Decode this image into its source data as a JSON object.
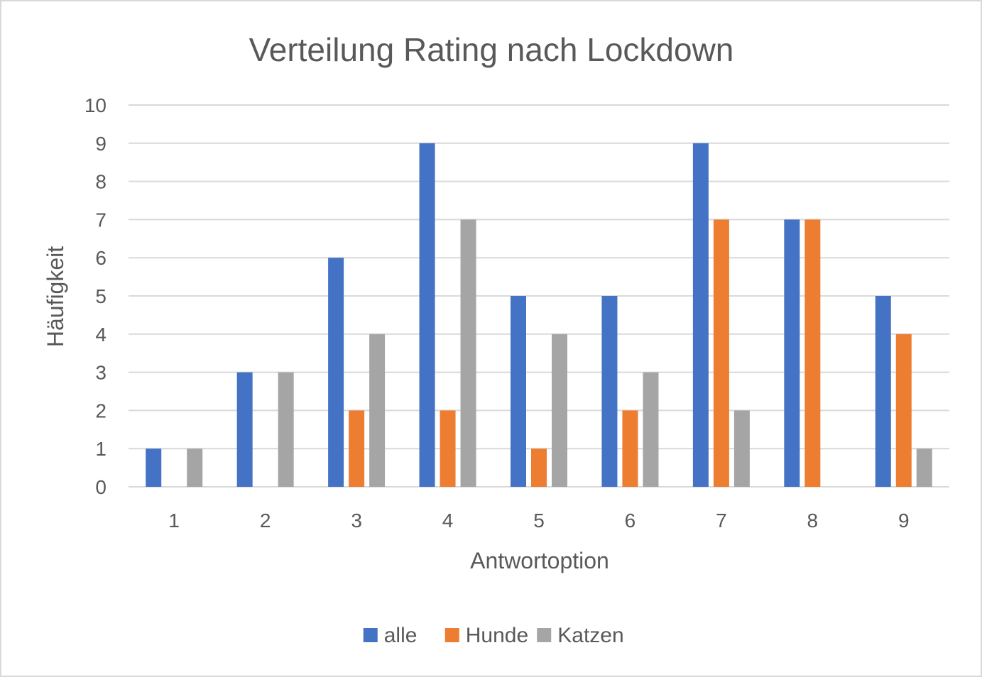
{
  "chart_data": {
    "type": "bar",
    "title": "Verteilung Rating nach Lockdown",
    "xlabel": "Antwortoption",
    "ylabel": "Häufigkeit",
    "categories": [
      "1",
      "2",
      "3",
      "4",
      "5",
      "6",
      "7",
      "8",
      "9"
    ],
    "ylim": [
      0,
      10
    ],
    "yticks": [
      "0",
      "1",
      "2",
      "3",
      "4",
      "5",
      "6",
      "7",
      "8",
      "9",
      "10"
    ],
    "grid": true,
    "legend_position": "bottom",
    "series": [
      {
        "name": "alle",
        "color": "#4472c4",
        "values": [
          1,
          3,
          6,
          9,
          5,
          5,
          9,
          7,
          5
        ]
      },
      {
        "name": "Hunde",
        "color": "#ed7d31",
        "values": [
          0,
          0,
          2,
          2,
          1,
          2,
          7,
          7,
          4
        ]
      },
      {
        "name": "Katzen",
        "color": "#a5a5a5",
        "values": [
          1,
          3,
          4,
          7,
          4,
          3,
          2,
          0,
          1
        ]
      }
    ]
  }
}
